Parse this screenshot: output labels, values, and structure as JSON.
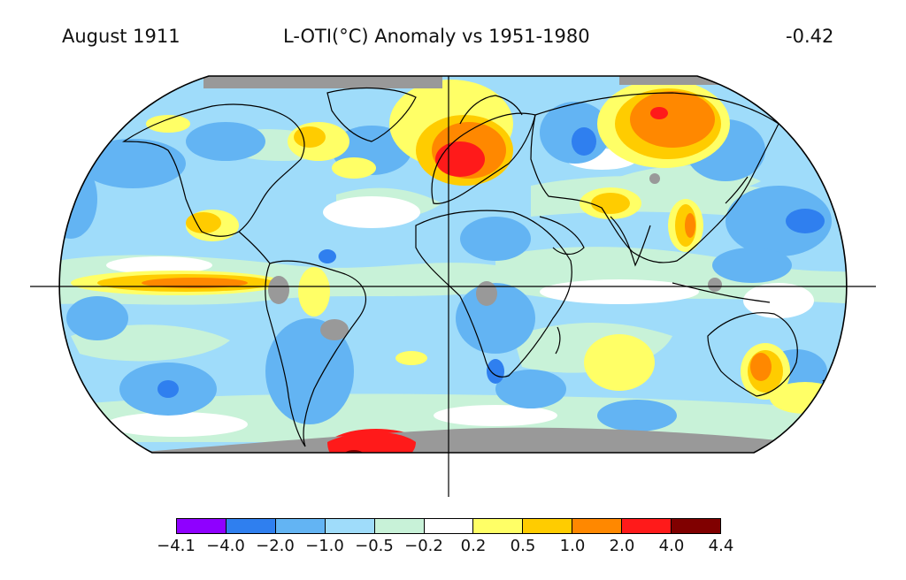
{
  "header": {
    "left": "August 1911",
    "center": "L-OTI(°C) Anomaly vs 1951-1980",
    "right": "-0.42"
  },
  "colorbar": {
    "colors": [
      "#8f00ff",
      "#2f7fef",
      "#63b4f3",
      "#9fdcfa",
      "#c8f2d8",
      "#ffffff",
      "#ffff66",
      "#ffcc00",
      "#ff8800",
      "#ff1a1a",
      "#800000"
    ],
    "tick_labels": [
      "−4.1",
      "−4.0",
      "−2.0",
      "−1.0",
      "−0.5",
      "−0.2",
      "0.2",
      "0.5",
      "1.0",
      "2.0",
      "4.0",
      "4.4"
    ]
  },
  "legend": {
    "missing_color": "#999999",
    "map_style": "Robinson projection, global surface temperature anomaly"
  }
}
